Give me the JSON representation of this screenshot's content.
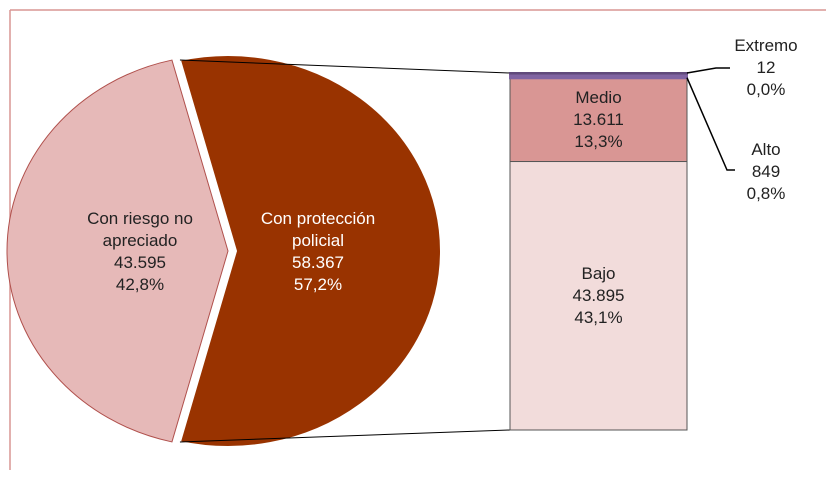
{
  "chart_data": {
    "type": "bar-of-pie",
    "categories": [
      "Con riesgo no apreciado",
      "Con protección policial"
    ],
    "values": [
      43595,
      58367
    ],
    "value_labels": [
      "43.595",
      "58.367"
    ],
    "percents": [
      42.8,
      57.2
    ],
    "percent_labels": [
      "42,8%",
      "57,2%"
    ],
    "colors": [
      "#e6b9b8",
      "#993300"
    ],
    "breakdown": {
      "categories": [
        "Bajo",
        "Medio",
        "Alto",
        "Extremo"
      ],
      "values": [
        43895,
        13611,
        849,
        12
      ],
      "value_labels": [
        "43.895",
        "13.611",
        "849",
        "12"
      ],
      "percents": [
        43.1,
        13.3,
        0.8,
        0.0
      ],
      "percent_labels": [
        "43,1%",
        "13,3%",
        "0,8%",
        "0,0%"
      ],
      "colors": [
        "#f2dcdb",
        "#d99694",
        "#8064a2",
        "#604a7b"
      ]
    }
  }
}
